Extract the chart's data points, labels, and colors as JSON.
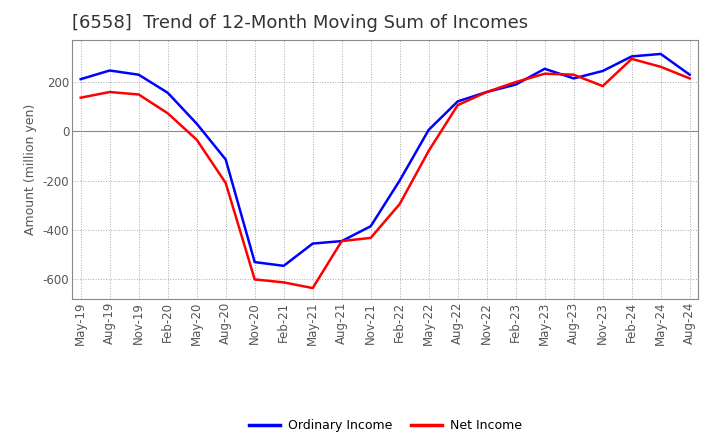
{
  "title": "[6558]  Trend of 12-Month Moving Sum of Incomes",
  "ylabel": "Amount (million yen)",
  "ylim": [
    -680,
    370
  ],
  "yticks": [
    -600,
    -400,
    -200,
    0,
    200
  ],
  "legend_labels": [
    "Ordinary Income",
    "Net Income"
  ],
  "line_colors": [
    "#0000ff",
    "#ff0000"
  ],
  "line_width": 1.8,
  "x_labels": [
    "May-19",
    "Aug-19",
    "Nov-19",
    "Feb-20",
    "May-20",
    "Aug-20",
    "Nov-20",
    "Feb-21",
    "May-21",
    "Aug-21",
    "Nov-21",
    "Feb-22",
    "May-22",
    "Aug-22",
    "Nov-22",
    "Feb-23",
    "May-23",
    "Aug-23",
    "Nov-23",
    "Feb-24",
    "May-24",
    "Aug-24"
  ],
  "ordinary_income": [
    210,
    245,
    228,
    155,
    30,
    -115,
    -530,
    -545,
    -455,
    -445,
    -385,
    -200,
    5,
    120,
    158,
    188,
    252,
    213,
    243,
    302,
    312,
    228
  ],
  "net_income": [
    135,
    158,
    148,
    72,
    -35,
    -210,
    -600,
    -612,
    -635,
    -445,
    -432,
    -295,
    -80,
    105,
    158,
    198,
    232,
    228,
    182,
    292,
    260,
    213
  ],
  "background_color": "#ffffff",
  "grid_color": "#aaaaaa",
  "title_fontsize": 13,
  "label_fontsize": 9,
  "tick_fontsize": 8.5
}
